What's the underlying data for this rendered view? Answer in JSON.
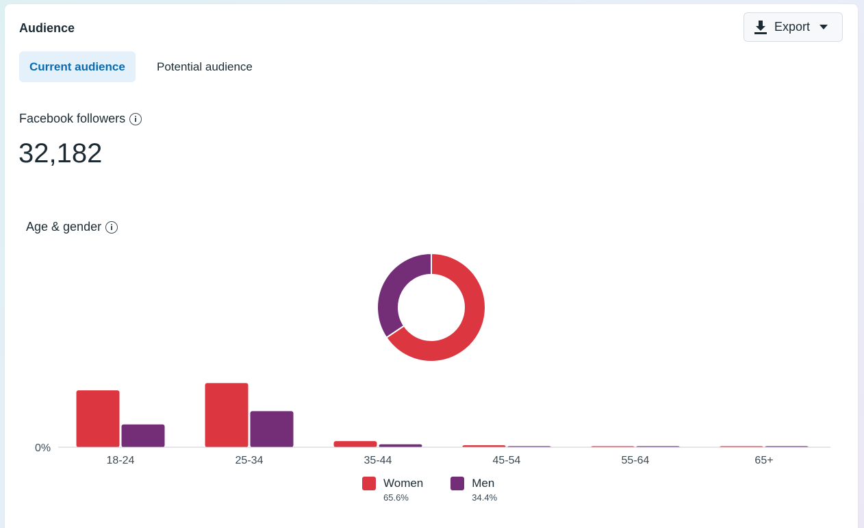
{
  "header": {
    "title": "Audience",
    "export_label": "Export"
  },
  "tabs": [
    {
      "label": "Current audience",
      "active": true
    },
    {
      "label": "Potential audience",
      "active": false
    }
  ],
  "followers": {
    "label": "Facebook followers",
    "count": "32,182"
  },
  "age_gender": {
    "label": "Age & gender"
  },
  "colors": {
    "women": "#dc3640",
    "men": "#742e78",
    "accent": "#0a6ab0"
  },
  "chart_data": [
    {
      "type": "pie",
      "donut": true,
      "labels": [
        "Women",
        "Men"
      ],
      "values": [
        65.6,
        34.4
      ]
    },
    {
      "type": "bar",
      "categories": [
        "18-24",
        "25-34",
        "35-44",
        "45-54",
        "55-64",
        "65+"
      ],
      "series": [
        {
          "name": "Women",
          "values": [
            23.5,
            26.5,
            2.5,
            0.8,
            0.3,
            0.2
          ]
        },
        {
          "name": "Men",
          "values": [
            9.4,
            14.9,
            1.2,
            0.4,
            0.2,
            0.2
          ]
        }
      ],
      "ytick_labels": [
        "0%"
      ],
      "ylim": [
        0,
        30
      ],
      "legend": "bottom-center"
    }
  ],
  "legend": [
    {
      "name": "Women",
      "pct": "65.6%"
    },
    {
      "name": "Men",
      "pct": "34.4%"
    }
  ]
}
